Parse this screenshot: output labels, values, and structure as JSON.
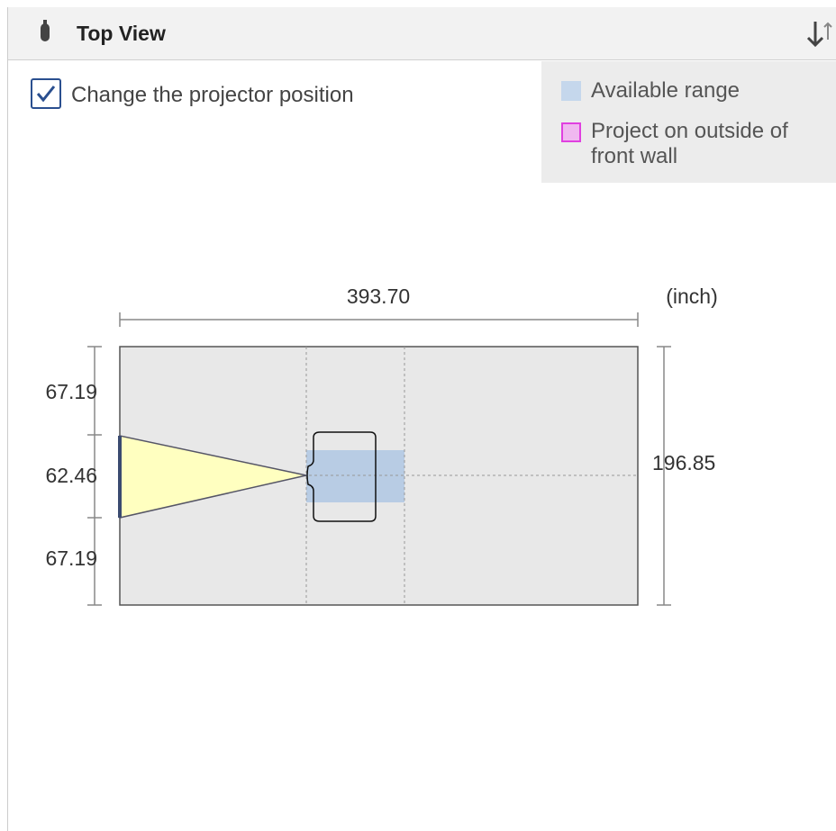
{
  "header": {
    "title": "Top View"
  },
  "checkbox": {
    "label": "Change the projector position",
    "checked": true
  },
  "legend": {
    "items": [
      "Available range",
      "Project on outside of front wall"
    ]
  },
  "dimensions": {
    "unit": "(inch)",
    "width": "393.70",
    "depth": "196.85",
    "left": [
      "67.19",
      "62.46",
      "67.19"
    ]
  }
}
